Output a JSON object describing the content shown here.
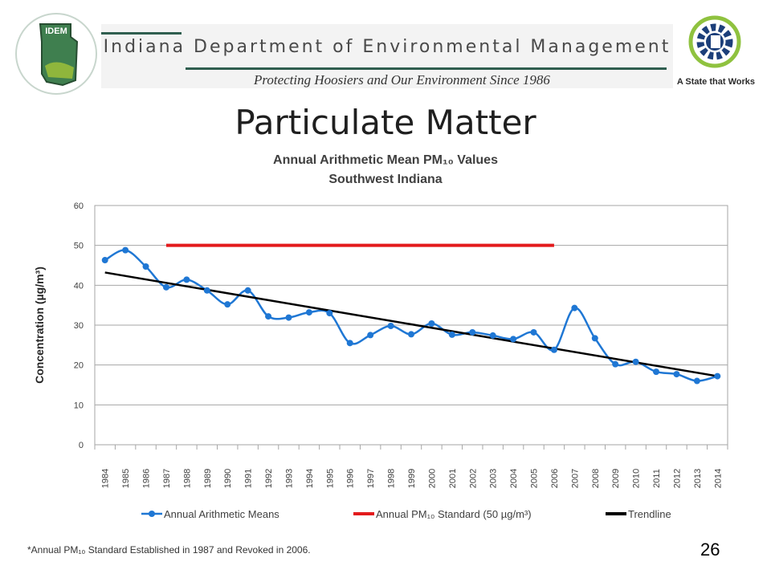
{
  "header": {
    "logo_text": "IDEM",
    "org_name": "Indiana Department of Environmental Management",
    "tagline": "Protecting Hoosiers and Our Environment Since 1986",
    "state_slogan": "A State that Works"
  },
  "page_title": "Particulate Matter",
  "chart_title_line1": "Annual Arithmetic Mean PM₁₀ Values",
  "chart_title_line2": "Southwest Indiana",
  "footnote": "*Annual PM₁₀ Standard Established in 1987 and Revoked in 2006.",
  "page_number": "26",
  "colors": {
    "means": "#1f77d4",
    "standard": "#e31a1c",
    "trend": "#000000",
    "grid": "#a6a6a6"
  },
  "chart_data": {
    "type": "line",
    "ylabel": "Concentration (µg/m³)",
    "ylim": [
      0,
      60
    ],
    "yticks": [
      0,
      10,
      20,
      30,
      40,
      50,
      60
    ],
    "grid": true,
    "legend_position": "bottom",
    "categories": [
      "1984",
      "1985",
      "1986",
      "1987",
      "1988",
      "1989",
      "1990",
      "1991",
      "1992",
      "1993",
      "1994",
      "1995",
      "1996",
      "1997",
      "1998",
      "1999",
      "2000",
      "2001",
      "2002",
      "2003",
      "2004",
      "2005",
      "2006",
      "2007",
      "2008",
      "2009",
      "2010",
      "2011",
      "2012",
      "2013",
      "2014"
    ],
    "series": [
      {
        "name": "Annual Arithmetic Means",
        "style": "smooth-line-markers",
        "values": [
          46.3,
          48.8,
          44.7,
          39.5,
          41.4,
          38.7,
          35.2,
          38.7,
          32.2,
          31.9,
          33.2,
          33.0,
          25.5,
          27.5,
          29.8,
          27.7,
          30.4,
          27.6,
          28.2,
          27.4,
          26.5,
          28.2,
          23.8,
          34.3,
          26.7,
          20.2,
          20.8,
          18.3,
          17.7,
          16.0,
          17.2
        ]
      },
      {
        "name": "Annual PM₁₀ Standard (50 µg/m³)",
        "style": "line",
        "x_range": [
          "1987",
          "2006"
        ],
        "value": 50
      },
      {
        "name": "Trendline",
        "style": "line",
        "endpoints": {
          "1984": 43.2,
          "2014": 17.2
        }
      }
    ]
  }
}
